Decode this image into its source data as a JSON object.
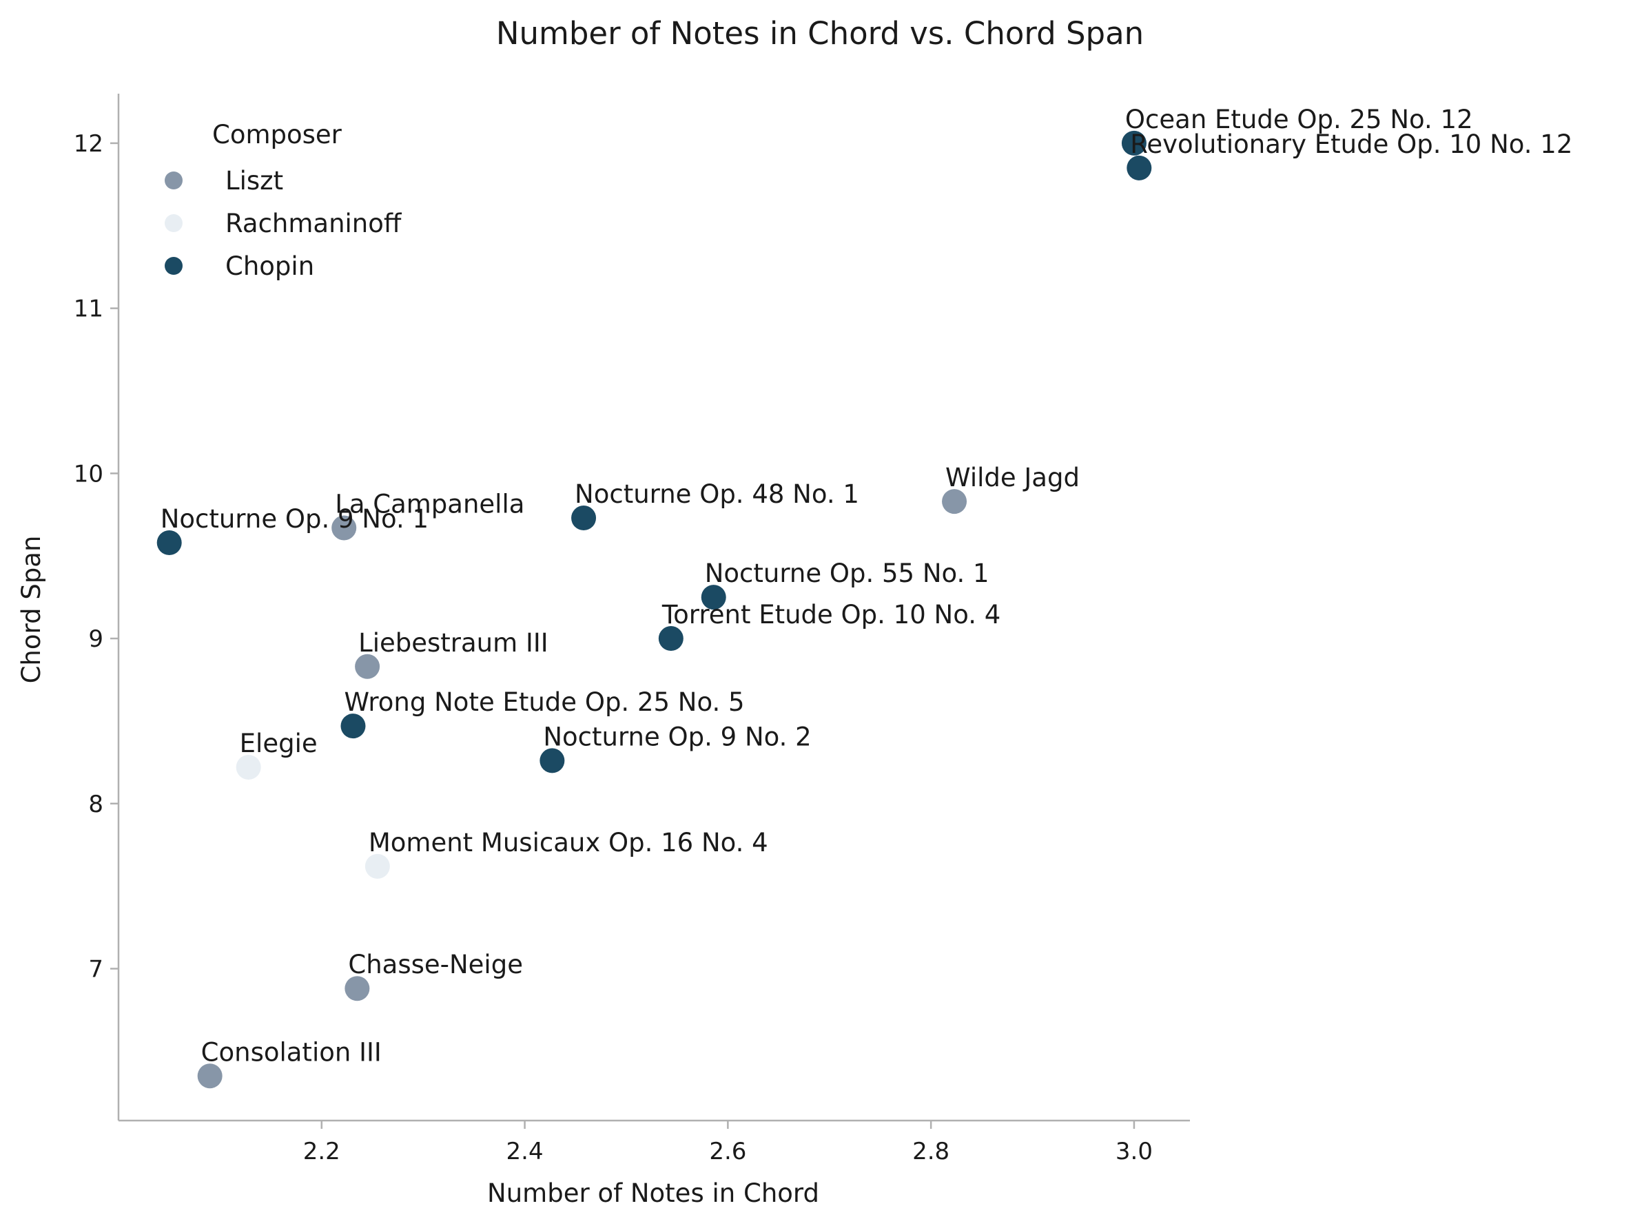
{
  "colors": {
    "Liszt": "#8796a8",
    "Rachmaninoff": "#e8eef3",
    "Chopin": "#1b4a63",
    "axis": "#b0b0b0",
    "text": "#1a1a1a"
  },
  "chart_data": {
    "type": "scatter",
    "title": "Number of Notes in Chord vs. Chord Span",
    "xlabel": "Number of Notes in Chord",
    "ylabel": "Chord Span",
    "xlim": [
      2.0,
      3.055
    ],
    "ylim": [
      6.08,
      12.3
    ],
    "xticks": [
      "2.2",
      "2.4",
      "2.6",
      "2.8",
      "3.0"
    ],
    "yticks": [
      "7",
      "8",
      "9",
      "10",
      "11",
      "12"
    ],
    "grid": false,
    "legend": {
      "title": "Composer",
      "position": "top-left",
      "entries": [
        "Liszt",
        "Rachmaninoff",
        "Chopin"
      ]
    },
    "points": [
      {
        "label": "Ocean Etude Op. 25 No. 12",
        "composer": "Chopin",
        "x": 3.0,
        "y": 12.0
      },
      {
        "label": "Revolutionary Etude Op. 10 No. 12",
        "composer": "Chopin",
        "x": 3.005,
        "y": 11.85
      },
      {
        "label": "Wilde Jagd",
        "composer": "Liszt",
        "x": 2.823,
        "y": 9.83
      },
      {
        "label": "Nocturne Op. 48 No. 1",
        "composer": "Chopin",
        "x": 2.458,
        "y": 9.73
      },
      {
        "label": "La Campanella",
        "composer": "Liszt",
        "x": 2.222,
        "y": 9.67
      },
      {
        "label": "Nocturne Op. 9 No. 1",
        "composer": "Chopin",
        "x": 2.05,
        "y": 9.58
      },
      {
        "label": "Nocturne Op. 55 No. 1",
        "composer": "Chopin",
        "x": 2.586,
        "y": 9.25
      },
      {
        "label": "Torrent Etude Op. 10 No. 4",
        "composer": "Chopin",
        "x": 2.544,
        "y": 9.0
      },
      {
        "label": "Liebestraum III",
        "composer": "Liszt",
        "x": 2.245,
        "y": 8.83
      },
      {
        "label": "Wrong Note Etude Op. 25 No. 5",
        "composer": "Chopin",
        "x": 2.231,
        "y": 8.47
      },
      {
        "label": "Nocturne Op. 9 No. 2",
        "composer": "Chopin",
        "x": 2.427,
        "y": 8.26
      },
      {
        "label": "Elegie",
        "composer": "Rachmaninoff",
        "x": 2.128,
        "y": 8.22
      },
      {
        "label": "Moment Musicaux Op. 16 No. 4",
        "composer": "Rachmaninoff",
        "x": 2.255,
        "y": 7.62
      },
      {
        "label": "Chasse-Neige",
        "composer": "Liszt",
        "x": 2.235,
        "y": 6.88
      },
      {
        "label": "Consolation III",
        "composer": "Liszt",
        "x": 2.09,
        "y": 6.35
      }
    ]
  }
}
